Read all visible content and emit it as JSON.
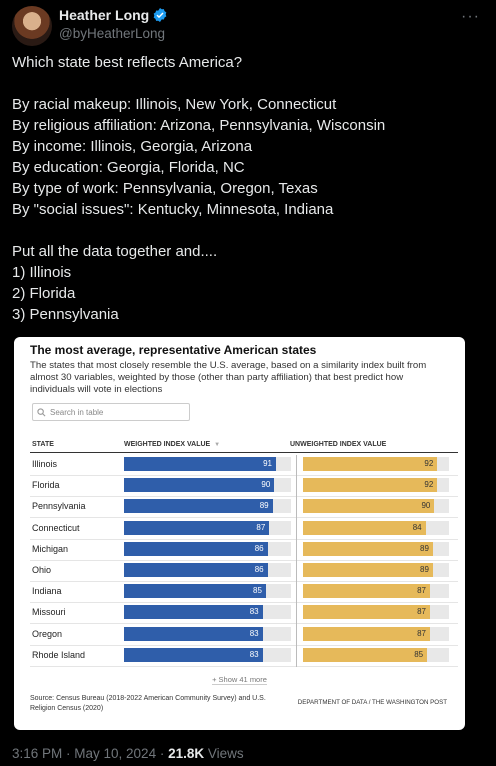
{
  "author": {
    "display_name": "Heather Long",
    "handle": "@byHeatherLong"
  },
  "tweet": {
    "text": "Which state best reflects America?\n\nBy racial makeup: Illinois, New York, Connecticut\nBy religious affiliation: Arizona, Pennsylvania, Wisconsin\nBy income: Illinois, Georgia, Arizona\nBy education: Georgia, Florida, NC\nBy type of work: Pennsylvania, Oregon, Texas\nBy \"social issues\": Kentucky, Minnesota, Indiana\n\nPut all the data together and....\n1) Illinois\n2) Florida\n3) Pennsylvania"
  },
  "card": {
    "title": "The most average, representative American states",
    "subtitle": "The states that most closely resemble the U.S. average, based on a similarity index built from almost 30 variables, weighted by those (other than party affiliation) that best predict how individuals will vote in elections",
    "search_placeholder": "Search in table",
    "col_state": "STATE",
    "col_weighted": "WEIGHTED INDEX VALUE",
    "col_sort_icon": "▼",
    "col_unweighted": "UNWEIGHTED INDEX VALUE",
    "show_more": "+ Show 41 more",
    "source": "Source: Census Bureau (2018-2022 American Community Survey) and U.S. Religion Census (2020)",
    "credit": "DEPARTMENT OF DATA / THE WASHINGTON POST",
    "colors": {
      "weighted": "#2f5eaa",
      "unweighted": "#e6b95a"
    }
  },
  "chart_data": {
    "type": "table",
    "columns": [
      "STATE",
      "WEIGHTED INDEX VALUE",
      "UNWEIGHTED INDEX VALUE"
    ],
    "rows": [
      {
        "state": "Illinois",
        "weighted": "91",
        "unweighted": "92"
      },
      {
        "state": "Florida",
        "weighted": "90",
        "unweighted": "92"
      },
      {
        "state": "Pennsylvania",
        "weighted": "89",
        "unweighted": "90"
      },
      {
        "state": "Connecticut",
        "weighted": "87",
        "unweighted": "84"
      },
      {
        "state": "Michigan",
        "weighted": "86",
        "unweighted": "89"
      },
      {
        "state": "Ohio",
        "weighted": "86",
        "unweighted": "89"
      },
      {
        "state": "Indiana",
        "weighted": "85",
        "unweighted": "87"
      },
      {
        "state": "Missouri",
        "weighted": "83",
        "unweighted": "87"
      },
      {
        "state": "Oregon",
        "weighted": "83",
        "unweighted": "87"
      },
      {
        "state": "Rhode Island",
        "weighted": "83",
        "unweighted": "85"
      }
    ],
    "max_value": 100
  },
  "meta": {
    "time": "3:16 PM · May 10, 2024 · ",
    "views": "21.8K",
    "views_label": " Views"
  }
}
